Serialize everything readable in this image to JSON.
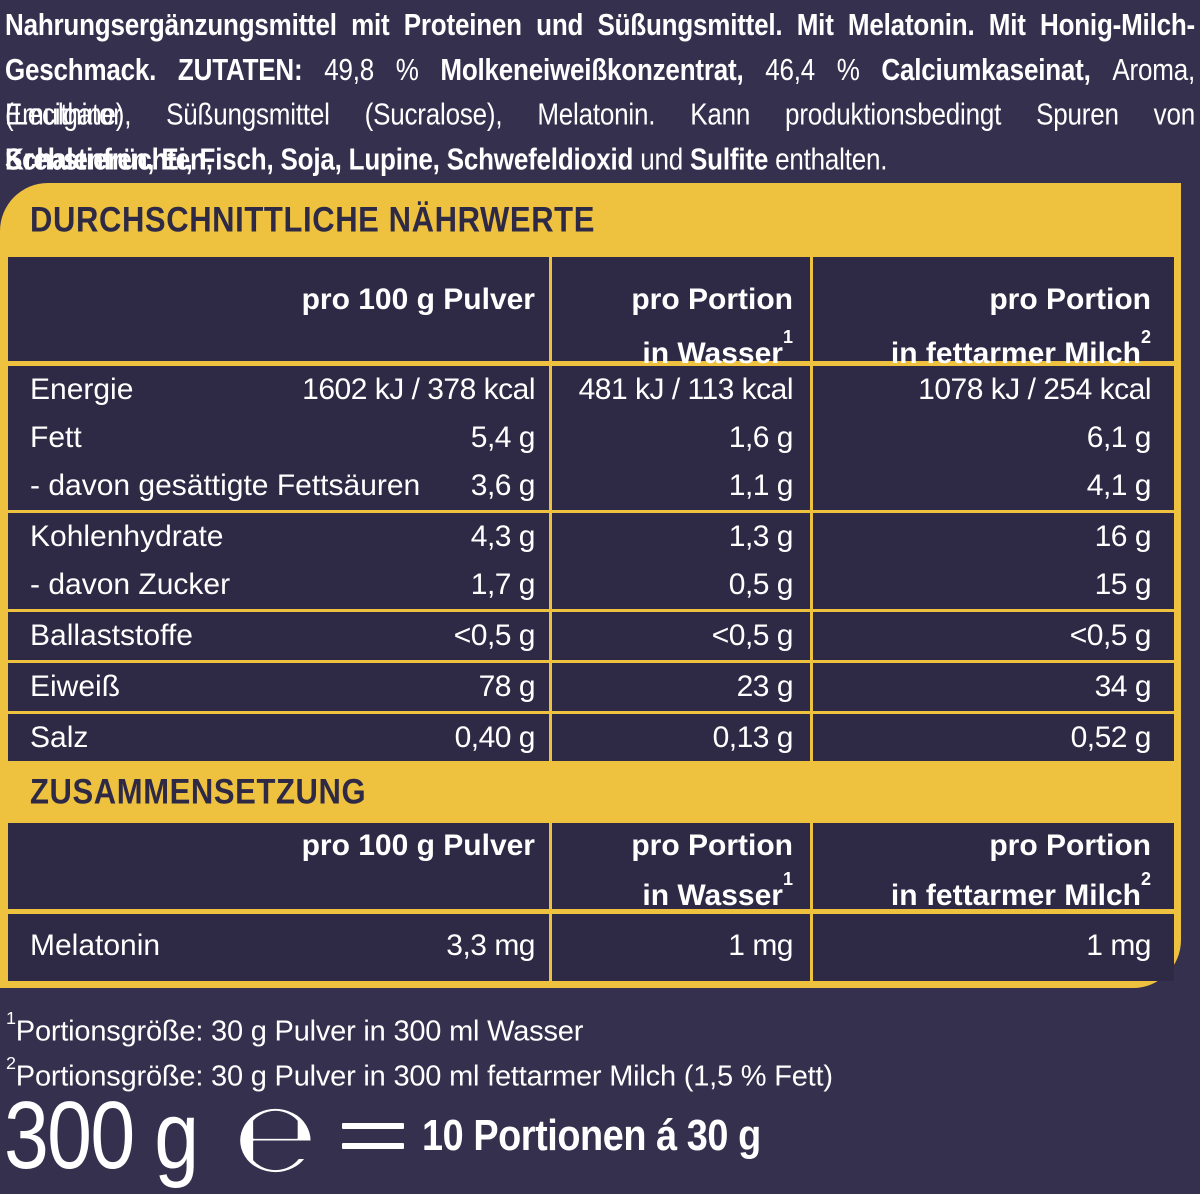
{
  "colors": {
    "background": "#34304e",
    "panel": "#2e2a45",
    "accent_yellow": "#eec23f",
    "text_light": "#ffffff",
    "text_dark": "#2e2a45"
  },
  "intro": {
    "lines": [
      {
        "segments": [
          {
            "b": 1,
            "t": "Nahrungsergänzungsmittel mit Proteinen und Süßungsmittel. Mit Melatonin. Mit Honig-Milch-"
          }
        ]
      },
      {
        "segments": [
          {
            "b": 1,
            "t": "Geschmack. ZUTATEN: "
          },
          {
            "b": 0,
            "t": "49,8 % "
          },
          {
            "b": 1,
            "t": "Molkeneiweißkonzentrat, "
          },
          {
            "b": 0,
            "t": "46,4 % "
          },
          {
            "b": 1,
            "t": "Calciumkaseinat, "
          },
          {
            "b": 0,
            "t": "Aroma, Emulgator"
          }
        ]
      },
      {
        "segments": [
          {
            "b": 0,
            "t": "(Lecithine), Süßungsmittel (Sucralose), Melatonin. Kann produktionsbedingt Spuren von "
          },
          {
            "b": 1,
            "t": "Schalenfrüchten,"
          }
        ]
      },
      {
        "segments": [
          {
            "b": 1,
            "t": "Krebstieren, Ei, Fisch, Soja, Lupine, Schwefeldioxid "
          },
          {
            "b": 0,
            "t": "und "
          },
          {
            "b": 1,
            "t": "Sulfite "
          },
          {
            "b": 0,
            "t": "enthalten."
          }
        ]
      }
    ]
  },
  "table1": {
    "heading": "DURCHSCHNITTLICHE NÄHRWERTE",
    "col1": "pro 100 g Pulver",
    "col2_line1": "pro Portion",
    "col2_line2": "in Wasser",
    "col2_sup": "1",
    "col3_line1": "pro Portion",
    "col3_line2": "in fettarmer Milch",
    "col3_sup": "2",
    "rows": [
      {
        "label": "Energie",
        "v1": "1602 kJ / 378 kcal",
        "v2": "481 kJ / 113 kcal",
        "v3": "1078 kJ / 254 kcal"
      },
      {
        "label": "Fett",
        "v1": "5,4 g",
        "v2": "1,6 g",
        "v3": "6,1 g"
      },
      {
        "label": "- davon gesättigte Fettsäuren",
        "v1": "3,6 g",
        "v2": "1,1 g",
        "v3": "4,1 g"
      },
      {
        "label": "Kohlenhydrate",
        "v1": "4,3 g",
        "v2": "1,3 g",
        "v3": "16 g"
      },
      {
        "label": "- davon Zucker",
        "v1": "1,7 g",
        "v2": "0,5 g",
        "v3": "15 g"
      },
      {
        "label": "Ballaststoffe",
        "v1": "<0,5 g",
        "v2": "<0,5 g",
        "v3": "<0,5 g"
      },
      {
        "label": "Eiweiß",
        "v1": "78 g",
        "v2": "23 g",
        "v3": "34 g"
      },
      {
        "label": "Salz",
        "v1": "0,40 g",
        "v2": "0,13 g",
        "v3": "0,52 g"
      }
    ]
  },
  "table2": {
    "heading": "ZUSAMMENSETZUNG",
    "col1": "pro 100 g Pulver",
    "col2_line1": "pro Portion",
    "col2_line2": "in Wasser",
    "col2_sup": "1",
    "col3_line1": "pro Portion",
    "col3_line2": "in fettarmer Milch",
    "col3_sup": "2",
    "rows": [
      {
        "label": "Melatonin",
        "v1": "3,3 mg",
        "v2": "1 mg",
        "v3": "1 mg"
      }
    ]
  },
  "footnotes": [
    {
      "sup": "1",
      "text": "Portionsgröße: 30 g Pulver in 300 ml Wasser"
    },
    {
      "sup": "2",
      "text": "Portionsgröße: 30 g Pulver in 300 ml fettarmer Milch (1,5 % Fett)"
    }
  ],
  "bottom": {
    "weight": "300 g",
    "estimated_sign": "℮",
    "equals_sign": "=",
    "portions": "10 Portionen á 30 g"
  }
}
